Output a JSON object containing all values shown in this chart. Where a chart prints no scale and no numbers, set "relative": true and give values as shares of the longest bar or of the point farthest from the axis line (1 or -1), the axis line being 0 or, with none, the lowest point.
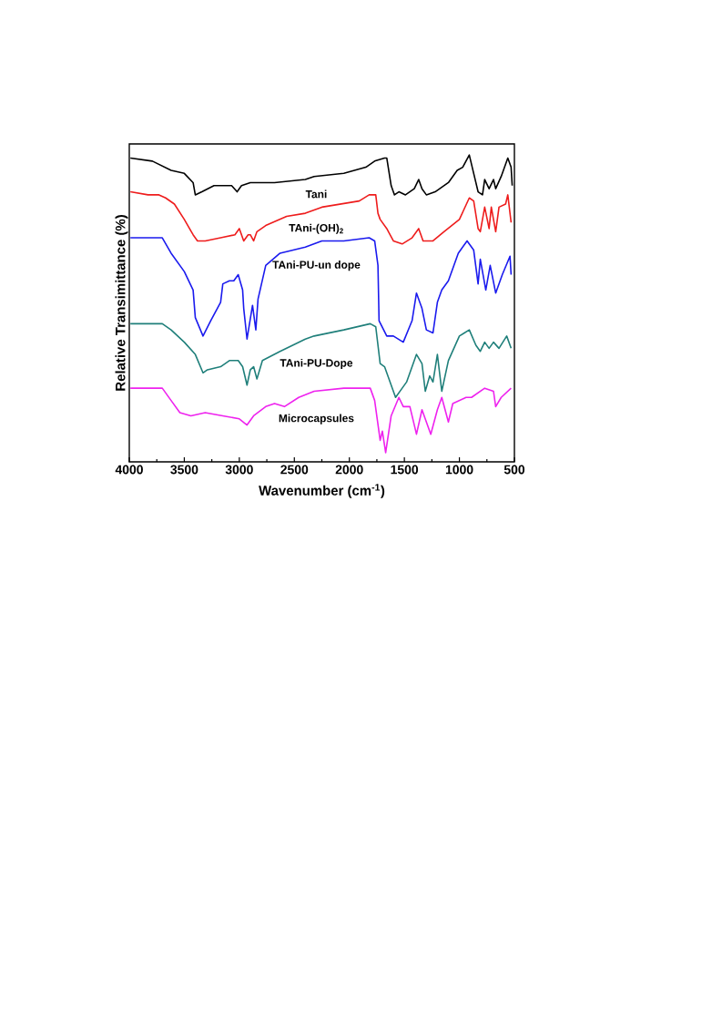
{
  "chart_data": {
    "type": "line",
    "relative": true,
    "xlabel": "Wavenumber (cm$^{-1}$)",
    "ylabel": "Relative Transimittance (%)",
    "xlim": [
      4000,
      500
    ],
    "xticks": [
      4000,
      3500,
      3000,
      2500,
      2000,
      1500,
      1000,
      500
    ],
    "line_style": "solid",
    "marker": "none",
    "series": [
      {
        "name": "Tani",
        "color": "#000000",
        "x": [
          3990,
          3790,
          3620,
          3500,
          3420,
          3400,
          3340,
          3230,
          3070,
          3020,
          2980,
          2900,
          2680,
          2400,
          2320,
          2050,
          1850,
          1770,
          1680,
          1660,
          1620,
          1590,
          1550,
          1490,
          1410,
          1370,
          1340,
          1300,
          1220,
          1100,
          1020,
          970,
          910,
          870,
          830,
          790,
          770,
          730,
          690,
          670,
          620,
          600,
          560,
          530,
          520
        ],
        "values": [
          0.99,
          0.98,
          0.95,
          0.94,
          0.91,
          0.87,
          0.88,
          0.9,
          0.9,
          0.88,
          0.9,
          0.91,
          0.91,
          0.92,
          0.93,
          0.94,
          0.96,
          0.98,
          0.99,
          0.99,
          0.9,
          0.87,
          0.88,
          0.87,
          0.89,
          0.92,
          0.89,
          0.87,
          0.88,
          0.91,
          0.95,
          0.96,
          1.0,
          0.94,
          0.88,
          0.87,
          0.92,
          0.89,
          0.92,
          0.89,
          0.93,
          0.95,
          0.99,
          0.96,
          0.9
        ]
      },
      {
        "name": "TAni-(OH)$_{2}$",
        "color": "#ee1c1c",
        "x": [
          3990,
          3830,
          3730,
          3670,
          3590,
          3500,
          3420,
          3380,
          3310,
          3170,
          3040,
          3000,
          2960,
          2920,
          2900,
          2870,
          2840,
          2760,
          2570,
          2400,
          2250,
          1910,
          1820,
          1760,
          1740,
          1720,
          1660,
          1600,
          1520,
          1430,
          1370,
          1330,
          1240,
          1140,
          1000,
          910,
          870,
          830,
          810,
          770,
          730,
          710,
          670,
          640,
          580,
          560,
          530
        ],
        "values": [
          0.88,
          0.87,
          0.87,
          0.86,
          0.84,
          0.79,
          0.74,
          0.72,
          0.72,
          0.73,
          0.74,
          0.76,
          0.72,
          0.74,
          0.74,
          0.72,
          0.75,
          0.77,
          0.8,
          0.81,
          0.83,
          0.85,
          0.87,
          0.87,
          0.81,
          0.79,
          0.76,
          0.72,
          0.71,
          0.73,
          0.76,
          0.72,
          0.72,
          0.75,
          0.79,
          0.86,
          0.85,
          0.76,
          0.75,
          0.83,
          0.76,
          0.83,
          0.75,
          0.83,
          0.84,
          0.87,
          0.78
        ]
      },
      {
        "name": "TAni-PU-un dope",
        "color": "#1a1aee",
        "x": [
          3990,
          3700,
          3620,
          3500,
          3420,
          3400,
          3330,
          3260,
          3170,
          3150,
          3090,
          3050,
          3010,
          2970,
          2960,
          2930,
          2880,
          2850,
          2830,
          2760,
          2630,
          2400,
          2250,
          2050,
          1820,
          1770,
          1740,
          1730,
          1660,
          1600,
          1510,
          1430,
          1390,
          1340,
          1300,
          1240,
          1200,
          1160,
          1100,
          1010,
          930,
          870,
          830,
          810,
          760,
          720,
          670,
          610,
          540,
          530
        ],
        "values": [
          0.73,
          0.73,
          0.68,
          0.62,
          0.56,
          0.47,
          0.41,
          0.46,
          0.52,
          0.58,
          0.59,
          0.59,
          0.61,
          0.56,
          0.5,
          0.4,
          0.51,
          0.43,
          0.53,
          0.64,
          0.68,
          0.7,
          0.72,
          0.72,
          0.73,
          0.72,
          0.64,
          0.46,
          0.41,
          0.41,
          0.39,
          0.46,
          0.55,
          0.5,
          0.43,
          0.42,
          0.52,
          0.56,
          0.59,
          0.68,
          0.72,
          0.69,
          0.58,
          0.66,
          0.56,
          0.64,
          0.55,
          0.61,
          0.67,
          0.61
        ]
      },
      {
        "name": "TAni-PU-Dope",
        "color": "#1f7f7a",
        "x": [
          3990,
          3700,
          3620,
          3500,
          3400,
          3330,
          3290,
          3170,
          3090,
          3010,
          2970,
          2930,
          2900,
          2870,
          2840,
          2790,
          2630,
          2400,
          2320,
          2050,
          1810,
          1760,
          1720,
          1680,
          1630,
          1580,
          1520,
          1480,
          1390,
          1340,
          1310,
          1270,
          1240,
          1200,
          1160,
          1100,
          1000,
          910,
          850,
          810,
          770,
          730,
          690,
          640,
          570,
          530
        ],
        "values": [
          0.45,
          0.45,
          0.43,
          0.39,
          0.35,
          0.29,
          0.3,
          0.31,
          0.33,
          0.33,
          0.31,
          0.25,
          0.3,
          0.31,
          0.27,
          0.33,
          0.36,
          0.4,
          0.41,
          0.43,
          0.45,
          0.44,
          0.32,
          0.31,
          0.26,
          0.21,
          0.24,
          0.26,
          0.35,
          0.32,
          0.23,
          0.28,
          0.26,
          0.35,
          0.23,
          0.33,
          0.41,
          0.43,
          0.38,
          0.36,
          0.39,
          0.37,
          0.39,
          0.37,
          0.41,
          0.37
        ]
      },
      {
        "name": "Microcapsules",
        "color": "#ee22ee",
        "x": [
          3990,
          3700,
          3620,
          3540,
          3440,
          3310,
          3150,
          3000,
          2930,
          2870,
          2760,
          2680,
          2590,
          2460,
          2320,
          2050,
          1810,
          1770,
          1720,
          1700,
          1670,
          1620,
          1550,
          1510,
          1450,
          1390,
          1340,
          1260,
          1200,
          1160,
          1100,
          1060,
          940,
          890,
          770,
          690,
          670,
          620,
          530
        ],
        "values": [
          0.24,
          0.24,
          0.2,
          0.16,
          0.15,
          0.16,
          0.15,
          0.14,
          0.12,
          0.15,
          0.18,
          0.19,
          0.18,
          0.21,
          0.23,
          0.24,
          0.24,
          0.2,
          0.07,
          0.1,
          0.03,
          0.15,
          0.21,
          0.18,
          0.18,
          0.09,
          0.17,
          0.09,
          0.17,
          0.21,
          0.13,
          0.19,
          0.21,
          0.21,
          0.24,
          0.23,
          0.18,
          0.21,
          0.24
        ]
      }
    ]
  }
}
